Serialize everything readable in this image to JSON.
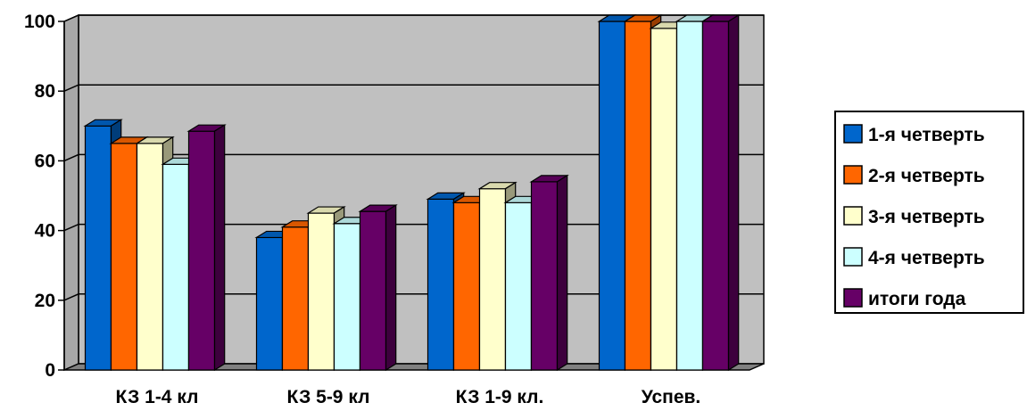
{
  "chart_data": {
    "type": "bar",
    "categories": [
      "КЗ 1-4 кл",
      "КЗ 5-9 кл",
      "КЗ 1-9 кл.",
      "Успев."
    ],
    "series": [
      {
        "name": "1-я четверть",
        "values": [
          70,
          38,
          49,
          100
        ]
      },
      {
        "name": "2-я четверть",
        "values": [
          65,
          41,
          48,
          100
        ]
      },
      {
        "name": "3-я четверть",
        "values": [
          65,
          45,
          52,
          98
        ]
      },
      {
        "name": "4-я четверть",
        "values": [
          59,
          42,
          48,
          100
        ]
      },
      {
        "name": "итоги года",
        "values": [
          68.5,
          45.5,
          54,
          100
        ]
      }
    ],
    "title": "",
    "xlabel": "",
    "ylabel": "",
    "ylim": [
      0,
      100
    ],
    "yticks": [
      "0",
      "20",
      "40",
      "60",
      "80",
      "100"
    ],
    "grid": true,
    "legend": "right",
    "colors": [
      "#0066CC",
      "#FF6600",
      "#FFFFCC",
      "#CCFFFF",
      "#660066"
    ],
    "plot_background": "#C0C0C0"
  }
}
